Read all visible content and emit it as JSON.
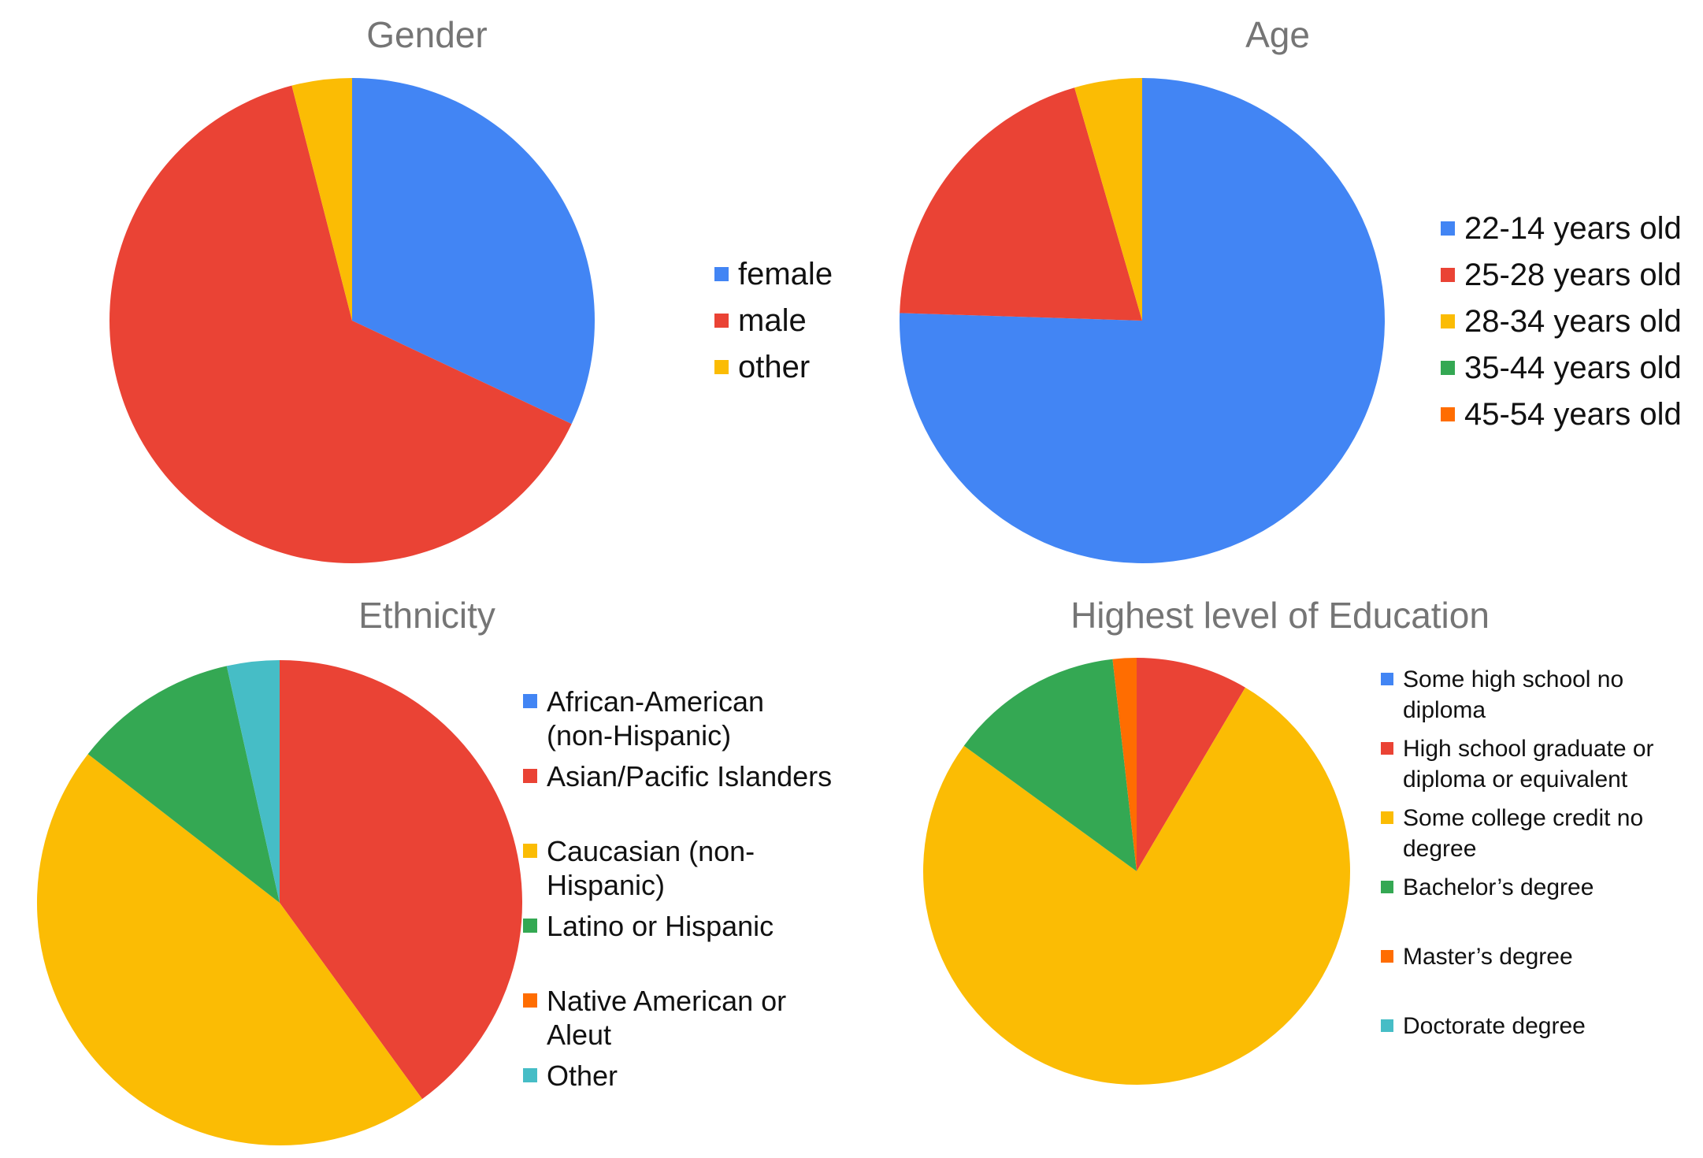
{
  "colors": {
    "blue": "#4285F4",
    "red": "#EA4335",
    "yellow": "#FBBC04",
    "green": "#34A853",
    "orange": "#FF6D01",
    "teal": "#46BDC6",
    "title": "#757575"
  },
  "chart_data": [
    {
      "type": "pie",
      "title": "Gender",
      "start_angle_deg": 0,
      "legend_position": "right",
      "slices": [
        {
          "label": "female",
          "value": 32,
          "color": "#4285F4"
        },
        {
          "label": "male",
          "value": 64,
          "color": "#EA4335"
        },
        {
          "label": "other",
          "value": 4,
          "color": "#FBBC04"
        }
      ]
    },
    {
      "type": "pie",
      "title": "Age",
      "start_angle_deg": 0,
      "legend_position": "right",
      "slices": [
        {
          "label": "22-14 years old",
          "value": 75.5,
          "color": "#4285F4"
        },
        {
          "label": "25-28 years old",
          "value": 20,
          "color": "#EA4335"
        },
        {
          "label": "28-34 years old",
          "value": 4.5,
          "color": "#FBBC04"
        },
        {
          "label": "35-44 years old",
          "value": 0,
          "color": "#34A853"
        },
        {
          "label": "45-54 years old",
          "value": 0,
          "color": "#FF6D01"
        }
      ]
    },
    {
      "type": "pie",
      "title": "Ethnicity",
      "start_angle_deg": 0,
      "legend_position": "right",
      "slices": [
        {
          "label": "African-American (non-Hispanic)",
          "lines": [
            "African-American",
            "(non-Hispanic)"
          ],
          "value": 0,
          "color": "#4285F4"
        },
        {
          "label": "Asian/Pacific Islanders",
          "lines": [
            "Asian/Pacific Islanders"
          ],
          "value": 40,
          "color": "#EA4335"
        },
        {
          "label": "Caucasian (non-Hispanic)",
          "lines": [
            "Caucasian (non-",
            "Hispanic)"
          ],
          "value": 45.5,
          "color": "#FBBC04"
        },
        {
          "label": "Latino or Hispanic",
          "lines": [
            "Latino or Hispanic"
          ],
          "value": 11,
          "color": "#34A853"
        },
        {
          "label": "Native American or Aleut",
          "lines": [
            "Native American or",
            "Aleut"
          ],
          "value": 0,
          "color": "#FF6D01"
        },
        {
          "label": "Other",
          "lines": [
            "Other"
          ],
          "value": 3.5,
          "color": "#46BDC6"
        }
      ]
    },
    {
      "type": "pie",
      "title": "Highest level of Education",
      "start_angle_deg": 0,
      "legend_position": "right",
      "slices": [
        {
          "label": "Some high school no diploma",
          "lines": [
            "Some high school no",
            "diploma"
          ],
          "value": 0,
          "color": "#4285F4"
        },
        {
          "label": "High school graduate or diploma or equivalent",
          "lines": [
            "High school graduate or",
            "diploma or equivalent"
          ],
          "value": 8.5,
          "color": "#EA4335"
        },
        {
          "label": "Some college credit no degree",
          "lines": [
            "Some college credit no",
            "degree"
          ],
          "value": 76.5,
          "color": "#FBBC04"
        },
        {
          "label": "Bachelor’s degree",
          "lines": [
            "Bachelor’s degree"
          ],
          "value": 13.2,
          "color": "#34A853"
        },
        {
          "label": "Master’s degree",
          "lines": [
            "Master’s degree"
          ],
          "value": 1.8,
          "color": "#FF6D01"
        },
        {
          "label": "Doctorate degree",
          "lines": [
            "Doctorate degree"
          ],
          "value": 0,
          "color": "#46BDC6"
        }
      ]
    }
  ]
}
